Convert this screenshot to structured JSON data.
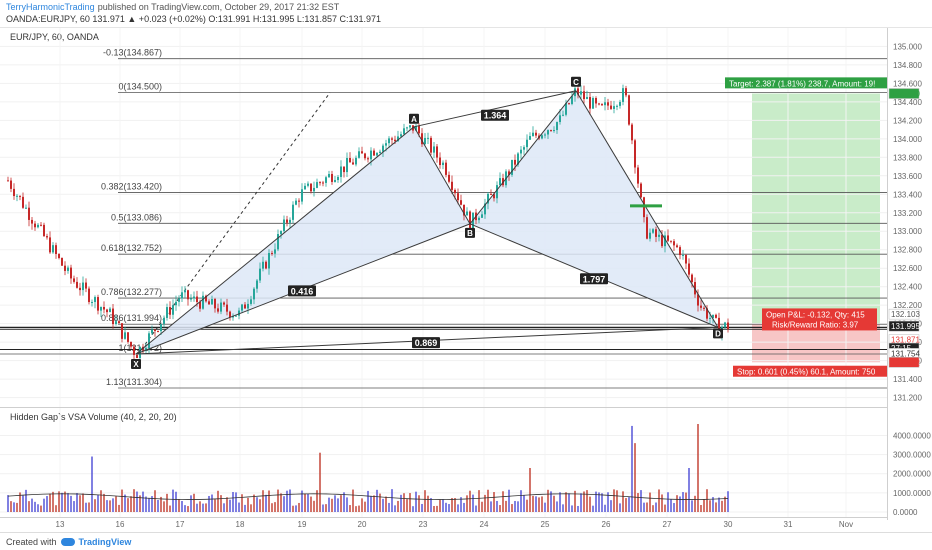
{
  "header": {
    "author": "TerryHarmonicTrading",
    "published": "published on TradingView.com, October 29, 2017 21:32 EST",
    "quote_line": "OANDA:EURJPY, 60  131.971 ▲ +0.023 (+0.02%) O:131.991 H:131.995 L:131.857 C:131.971",
    "symbol_label": "EUR/JPY, 60, OANDA",
    "indicator_label": "Hidden Gap`s VSA Volume (40, 2, 20, 20)"
  },
  "footer": {
    "created_with": "Created with",
    "brand": "TradingView"
  },
  "colors": {
    "up": "#26a69a",
    "down": "#c62828",
    "pattern_fill": "#dde7f7",
    "pattern_line": "#3a3a3a",
    "target_zone": "#c9ecc9",
    "stop_zone": "#f7c6c6",
    "target_box": "#2ea043",
    "stop_box": "#e53935",
    "vol_up": "#4a4ad6",
    "vol_down": "#c0392b"
  },
  "chart_data": {
    "type": "candlestick",
    "symbol": "OANDA:EURJPY",
    "timeframe": "60",
    "x_labels": [
      "13",
      "16",
      "17",
      "18",
      "19",
      "20",
      "23",
      "24",
      "25",
      "26",
      "27",
      "30",
      "31",
      "Nov"
    ],
    "y_ticks": [
      "135.000",
      "134.800",
      "134.600",
      "134.400",
      "134.200",
      "134.000",
      "133.800",
      "133.600",
      "133.400",
      "133.200",
      "133.000",
      "132.800",
      "132.600",
      "132.400",
      "132.200",
      "132.000",
      "131.800",
      "131.600",
      "131.400",
      "131.200"
    ],
    "ylim": [
      131.12,
      135.08
    ],
    "fib_levels": [
      {
        "label": "-0.13(134.867)",
        "price": 134.867
      },
      {
        "label": "0(134.500)",
        "price": 134.5
      },
      {
        "label": "0.382(133.420)",
        "price": 133.42
      },
      {
        "label": "0.5(133.086)",
        "price": 133.086
      },
      {
        "label": "0.618(132.752)",
        "price": 132.752
      },
      {
        "label": "0.786(132.277)",
        "price": 132.277
      },
      {
        "label": "0.886(131.994)",
        "price": 131.994
      },
      {
        "label": "1(131.672)",
        "price": 131.672
      },
      {
        "label": "1.13(131.304)",
        "price": 131.304
      }
    ],
    "pattern_points": [
      {
        "name": "X",
        "price": 131.672
      },
      {
        "name": "A",
        "price": 134.13
      },
      {
        "name": "B",
        "price": 133.08
      },
      {
        "name": "C",
        "price": 134.52
      },
      {
        "name": "D",
        "price": 131.96
      }
    ],
    "ratios": [
      "0.416",
      "1.364",
      "1.797",
      "0.869"
    ],
    "price_labels": [
      {
        "text": "134.490",
        "price": 134.49,
        "color": "#2ea043"
      },
      {
        "text": "132.103",
        "price": 132.103,
        "color": "#555555"
      },
      {
        "text": "131.995",
        "price": 131.995,
        "color": "#ffffff"
      },
      {
        "text": "131.871",
        "price": 131.871,
        "color": "#e53935"
      },
      {
        "text": "27:15",
        "price": 131.79,
        "color": "#ffffff"
      },
      {
        "text": "131.754",
        "price": 131.754,
        "color": "#333333"
      },
      {
        "text": "131.582",
        "price": 131.582,
        "color": "#e53935"
      }
    ],
    "target_text": "Target: 2.387 (1.81%) 238.7, Amount: 19!",
    "open_pl_text": "Open P&L: -0.132, Qty: 415",
    "rr_text": "Risk/Reward Ratio: 3.97",
    "stop_text": "Stop: 0.601 (0.45%) 60.1, Amount: 750",
    "volume_ticks": [
      "4000.0000",
      "3000.0000",
      "2000.0000",
      "1000.0000",
      "0.0000"
    ],
    "volume_ylim": [
      0,
      4600
    ]
  }
}
